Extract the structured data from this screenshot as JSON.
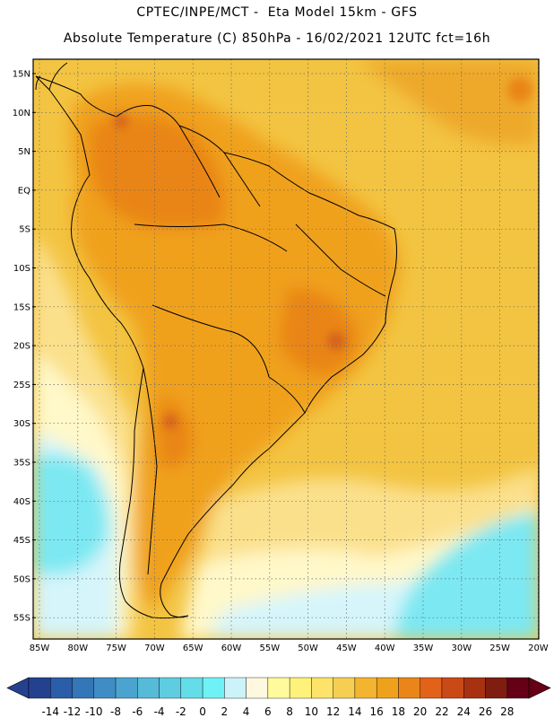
{
  "header": {
    "line1": "CPTEC/INPE/MCT -  Eta Model 15km - GFS",
    "line2": "Absolute Temperature (C) 850hPa - 16/02/2021 12UTC fct=16h"
  },
  "map": {
    "lat_labels": [
      "15N",
      "10N",
      "5N",
      "EQ",
      "5S",
      "10S",
      "15S",
      "20S",
      "25S",
      "30S",
      "35S",
      "40S",
      "45S",
      "50S",
      "55S"
    ],
    "lon_labels": [
      "85W",
      "80W",
      "75W",
      "70W",
      "65W",
      "60W",
      "55W",
      "50W",
      "45W",
      "40W",
      "35W",
      "30W",
      "25W",
      "20W"
    ]
  },
  "colorbar": {
    "labels": [
      "-14",
      "-12",
      "-10",
      "-8",
      "-6",
      "-4",
      "-2",
      "0",
      "2",
      "4",
      "6",
      "8",
      "10",
      "12",
      "14",
      "16",
      "18",
      "20",
      "22",
      "24",
      "26",
      "28"
    ],
    "colors": [
      "#24418f",
      "#2b5da8",
      "#3476b8",
      "#3f8dc4",
      "#4ba4cf",
      "#55bbd8",
      "#5ecde0",
      "#64dde8",
      "#6ff2f5",
      "#ccf3fa",
      "#fff8e0",
      "#fffb9c",
      "#fff27a",
      "#fde36a",
      "#f6cf52",
      "#f3b52f",
      "#f0a11c",
      "#e98519",
      "#e2621a",
      "#c94a16",
      "#a83112",
      "#7f1e10",
      "#650016"
    ]
  },
  "colors": {
    "ocean_warm": "#f3c442",
    "ocean_mild": "#fbe08c",
    "ocean_cool": "#fff8c9",
    "ocean_cold": "#d6f5fb",
    "ocean_colder": "#7be8f2",
    "land_hot": "#f0a11c",
    "land_hotter": "#e98519",
    "land_hottest": "#d5621a"
  }
}
